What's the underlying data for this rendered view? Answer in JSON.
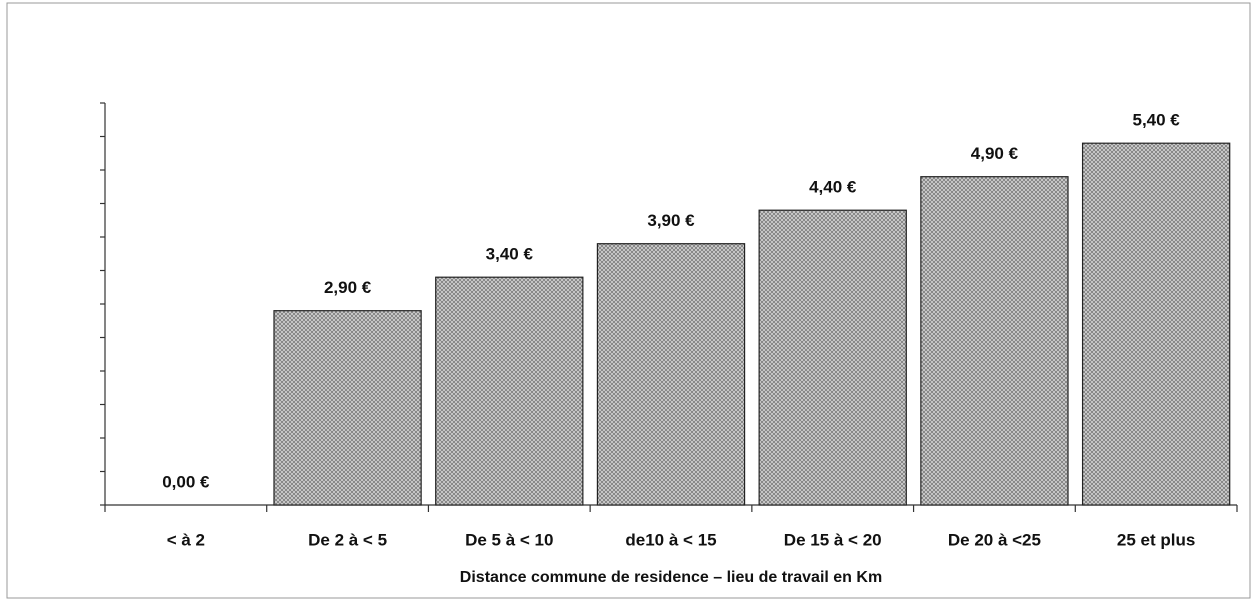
{
  "chart_data": {
    "type": "bar",
    "x_label": "Distance commune de residence – lieu de   travail  en Km",
    "categories": [
      "< à 2",
      "De 2 à < 5",
      "De 5 à < 10",
      "de10 à < 15",
      "De 15 à < 20",
      "De 20 à <25",
      "25 et plus"
    ],
    "values": [
      0,
      2.9,
      3.4,
      3.9,
      4.4,
      4.9,
      5.4
    ],
    "value_labels": [
      "0,00 €",
      "2,90 €",
      "3,40 €",
      "3,90 €",
      "4,40 €",
      "4,90 €",
      "5,40 €"
    ],
    "color": "#a8a8a8",
    "ylim": [
      0,
      6
    ],
    "yticks": [
      0,
      0.5,
      1,
      1.5,
      2,
      2.5,
      3,
      3.5,
      4,
      4.5,
      5,
      5.5,
      6
    ],
    "grid": false
  }
}
